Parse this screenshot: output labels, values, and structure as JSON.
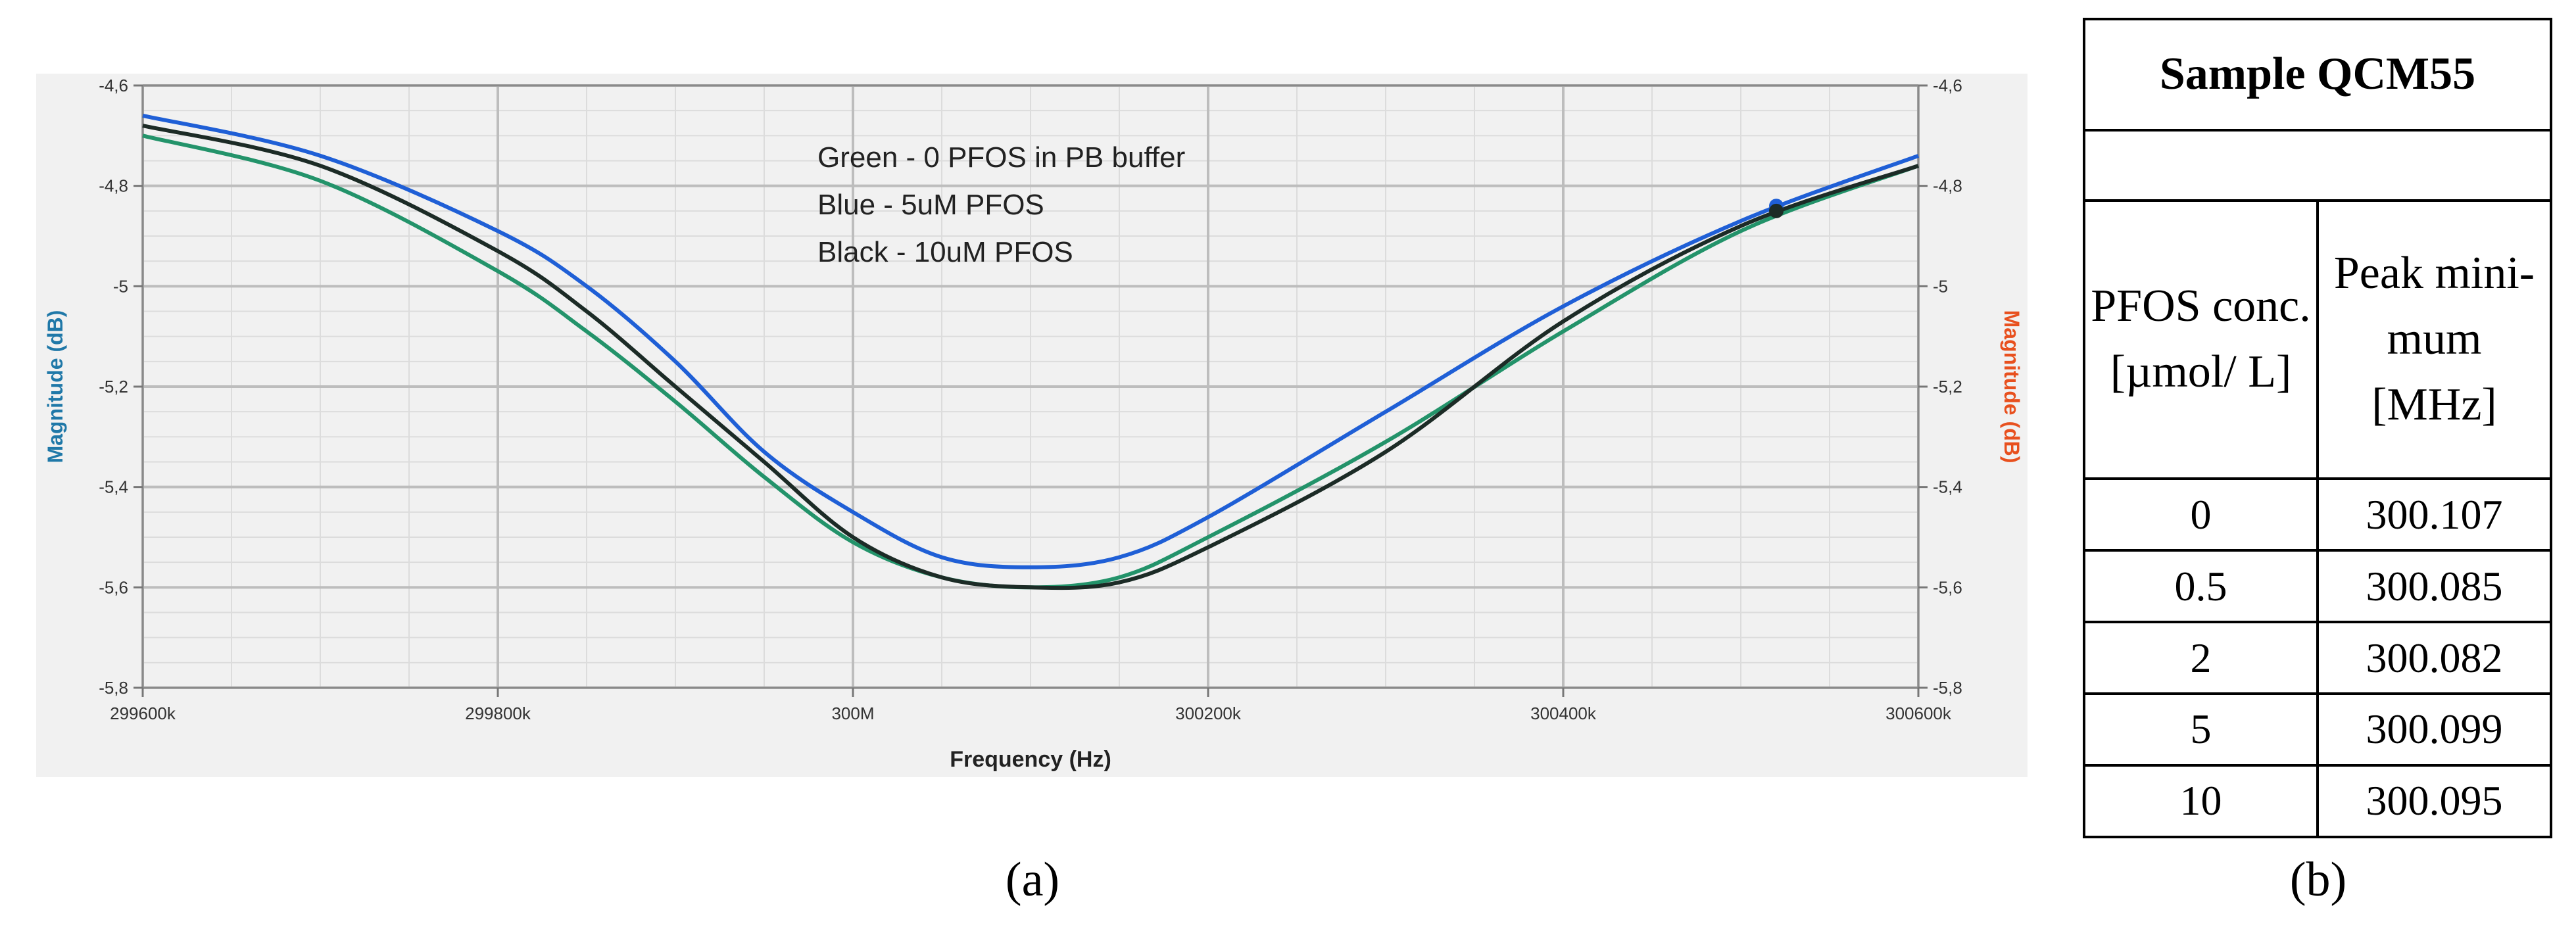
{
  "figure": {
    "caption_a": "(a)",
    "caption_b": "(b)"
  },
  "chart_data": {
    "type": "line",
    "title": "",
    "xlabel": "Frequency (Hz)",
    "ylabel_left": "Magnitude (dB)",
    "ylabel_right": "Magnitude (dB)",
    "xlim": [
      299600000,
      300600000
    ],
    "ylim": [
      -5.8,
      -4.6
    ],
    "x_ticks": [
      {
        "value": 299600000,
        "label": "299600k"
      },
      {
        "value": 299800000,
        "label": "299800k"
      },
      {
        "value": 300000000,
        "label": "300M"
      },
      {
        "value": 300200000,
        "label": "300200k"
      },
      {
        "value": 300400000,
        "label": "300400k"
      },
      {
        "value": 300600000,
        "label": "300600k"
      }
    ],
    "y_ticks": [
      {
        "value": -4.6,
        "label": "-4,6"
      },
      {
        "value": -4.8,
        "label": "-4,8"
      },
      {
        "value": -5.0,
        "label": "-5"
      },
      {
        "value": -5.2,
        "label": "-5,2"
      },
      {
        "value": -5.4,
        "label": "-5,4"
      },
      {
        "value": -5.6,
        "label": "-5,6"
      },
      {
        "value": -5.8,
        "label": "-5,8"
      }
    ],
    "grid": true,
    "annotations": [
      "Green - 0 PFOS in PB buffer",
      "Blue - 5uM PFOS",
      "Black - 10uM PFOS"
    ],
    "x": [
      299600000,
      299700000,
      299800000,
      299850000,
      299900000,
      299950000,
      300000000,
      300050000,
      300100000,
      300150000,
      300200000,
      300300000,
      300400000,
      300500000,
      300600000
    ],
    "series": [
      {
        "name": "Green",
        "color": "#23936a",
        "values": [
          -4.7,
          -4.79,
          -4.97,
          -5.09,
          -5.23,
          -5.38,
          -5.51,
          -5.58,
          -5.6,
          -5.58,
          -5.5,
          -5.31,
          -5.09,
          -4.89,
          -4.76
        ]
      },
      {
        "name": "Blue",
        "color": "#1f5fd6",
        "values": [
          -4.66,
          -4.74,
          -4.89,
          -5.0,
          -5.15,
          -5.33,
          -5.45,
          -5.54,
          -5.56,
          -5.54,
          -5.46,
          -5.25,
          -5.04,
          -4.87,
          -4.74
        ]
      },
      {
        "name": "Black",
        "color": "#1c2b26",
        "values": [
          -4.68,
          -4.76,
          -4.93,
          -5.05,
          -5.2,
          -5.35,
          -5.5,
          -5.58,
          -5.6,
          -5.59,
          -5.52,
          -5.33,
          -5.07,
          -4.88,
          -4.76
        ]
      }
    ],
    "markers": [
      {
        "series": "Blue",
        "x": 300520000,
        "y": -4.84
      },
      {
        "series": "Black",
        "x": 300520000,
        "y": -4.85
      }
    ]
  },
  "table": {
    "title": "Sample QCM55",
    "col1_header": "PFOS conc. [µmol/ L]",
    "col2_header": "Peak mini- mum [MHz]",
    "rows": [
      {
        "conc": "0",
        "peak": "300.107"
      },
      {
        "conc": "0.5",
        "peak": "300.085"
      },
      {
        "conc": "2",
        "peak": "300.082"
      },
      {
        "conc": "5",
        "peak": "300.099"
      },
      {
        "conc": "10",
        "peak": "300.095"
      }
    ]
  },
  "colors": {
    "left_axis_label": "#1f78a8",
    "right_axis_label": "#e8501e",
    "panel_bg": "#f1f1f1",
    "grid_major": "#bdbdbd",
    "grid_minor": "#dcdcdc"
  }
}
